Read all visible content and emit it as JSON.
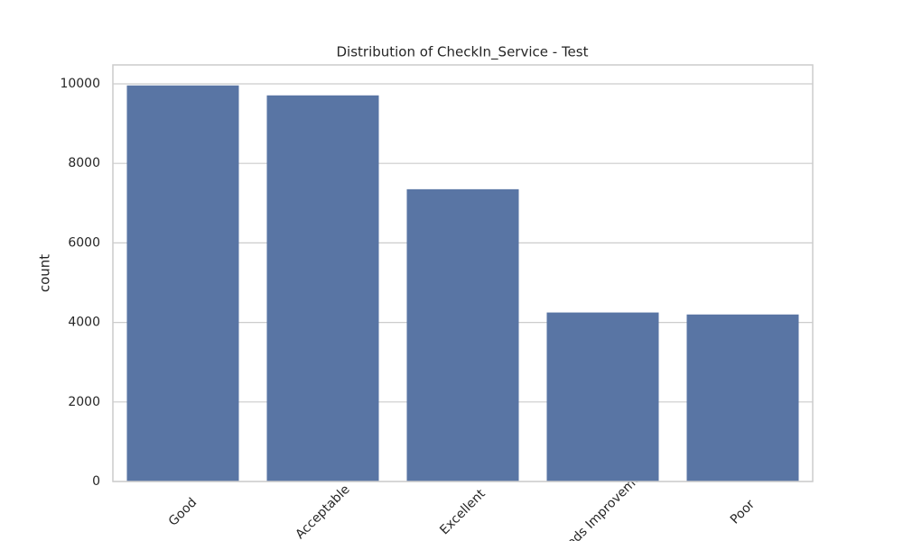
{
  "chart_data": {
    "type": "bar",
    "title": "Distribution of CheckIn_Service - Test",
    "y_label": "count",
    "categories": [
      "Good",
      "Acceptable",
      "Excellent",
      "Needs Improvement",
      "Poor"
    ],
    "values": [
      9960,
      9710,
      7350,
      4250,
      4200
    ],
    "color": "#5975a4",
    "ylim": [
      0,
      10476
    ],
    "yticks": [
      0,
      2000,
      4000,
      6000,
      8000,
      10000
    ],
    "grid": true
  }
}
